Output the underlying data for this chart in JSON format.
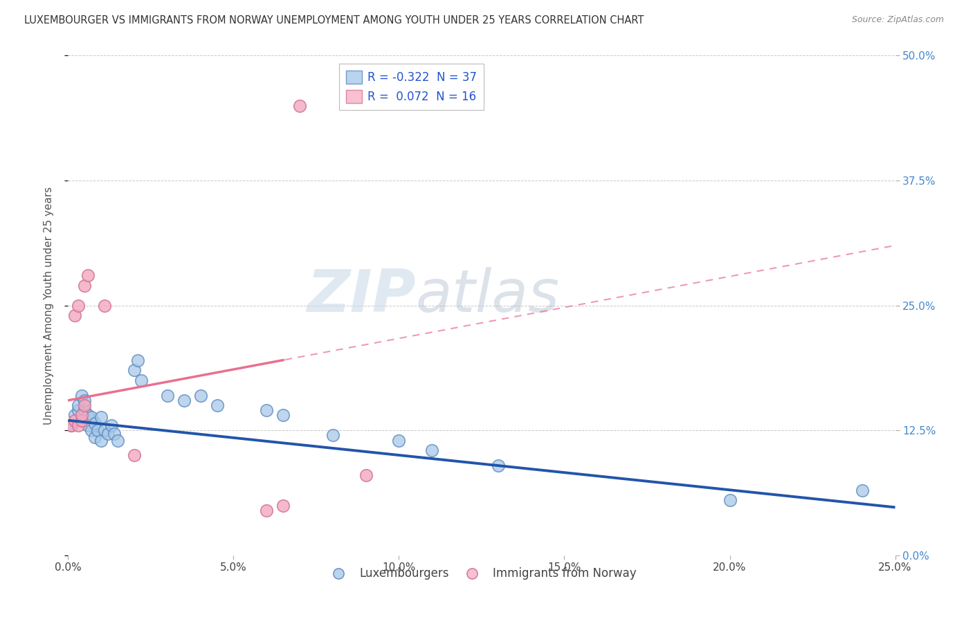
{
  "title": "LUXEMBOURGER VS IMMIGRANTS FROM NORWAY UNEMPLOYMENT AMONG YOUTH UNDER 25 YEARS CORRELATION CHART",
  "source": "Source: ZipAtlas.com",
  "ylabel": "Unemployment Among Youth under 25 years",
  "xlim": [
    0.0,
    0.25
  ],
  "ylim": [
    0.0,
    0.5
  ],
  "xticks": [
    0.0,
    0.05,
    0.1,
    0.15,
    0.2,
    0.25
  ],
  "xtick_labels": [
    "0.0%",
    "5.0%",
    "10.0%",
    "15.0%",
    "20.0%",
    "25.0%"
  ],
  "yticks": [
    0.0,
    0.125,
    0.25,
    0.375,
    0.5
  ],
  "ytick_labels": [
    "0.0%",
    "12.5%",
    "25.0%",
    "37.5%",
    "50.0%"
  ],
  "blue_R": -0.322,
  "blue_N": 37,
  "pink_R": 0.072,
  "pink_N": 16,
  "blue_color": "#a8c8e8",
  "pink_color": "#f4a8c0",
  "blue_edge_color": "#5588bb",
  "pink_edge_color": "#cc7090",
  "blue_line_color": "#2255aa",
  "pink_line_color": "#e87090",
  "blue_scatter": [
    [
      0.001,
      0.13
    ],
    [
      0.002,
      0.14
    ],
    [
      0.003,
      0.145
    ],
    [
      0.003,
      0.15
    ],
    [
      0.004,
      0.135
    ],
    [
      0.004,
      0.16
    ],
    [
      0.005,
      0.145
    ],
    [
      0.005,
      0.155
    ],
    [
      0.006,
      0.13
    ],
    [
      0.006,
      0.14
    ],
    [
      0.007,
      0.138
    ],
    [
      0.007,
      0.125
    ],
    [
      0.008,
      0.132
    ],
    [
      0.008,
      0.118
    ],
    [
      0.009,
      0.125
    ],
    [
      0.01,
      0.138
    ],
    [
      0.01,
      0.115
    ],
    [
      0.011,
      0.125
    ],
    [
      0.012,
      0.122
    ],
    [
      0.013,
      0.13
    ],
    [
      0.014,
      0.122
    ],
    [
      0.015,
      0.115
    ],
    [
      0.02,
      0.185
    ],
    [
      0.021,
      0.195
    ],
    [
      0.022,
      0.175
    ],
    [
      0.03,
      0.16
    ],
    [
      0.035,
      0.155
    ],
    [
      0.04,
      0.16
    ],
    [
      0.045,
      0.15
    ],
    [
      0.06,
      0.145
    ],
    [
      0.065,
      0.14
    ],
    [
      0.08,
      0.12
    ],
    [
      0.1,
      0.115
    ],
    [
      0.11,
      0.105
    ],
    [
      0.13,
      0.09
    ],
    [
      0.2,
      0.055
    ],
    [
      0.24,
      0.065
    ]
  ],
  "pink_scatter": [
    [
      0.001,
      0.13
    ],
    [
      0.002,
      0.135
    ],
    [
      0.002,
      0.24
    ],
    [
      0.003,
      0.25
    ],
    [
      0.003,
      0.13
    ],
    [
      0.004,
      0.135
    ],
    [
      0.004,
      0.14
    ],
    [
      0.005,
      0.15
    ],
    [
      0.005,
      0.27
    ],
    [
      0.006,
      0.28
    ],
    [
      0.011,
      0.25
    ],
    [
      0.02,
      0.1
    ],
    [
      0.06,
      0.045
    ],
    [
      0.065,
      0.05
    ],
    [
      0.07,
      0.45
    ],
    [
      0.09,
      0.08
    ]
  ],
  "watermark_zip": "ZIP",
  "watermark_atlas": "atlas",
  "background_color": "#ffffff",
  "grid_color": "#bbbbbb"
}
